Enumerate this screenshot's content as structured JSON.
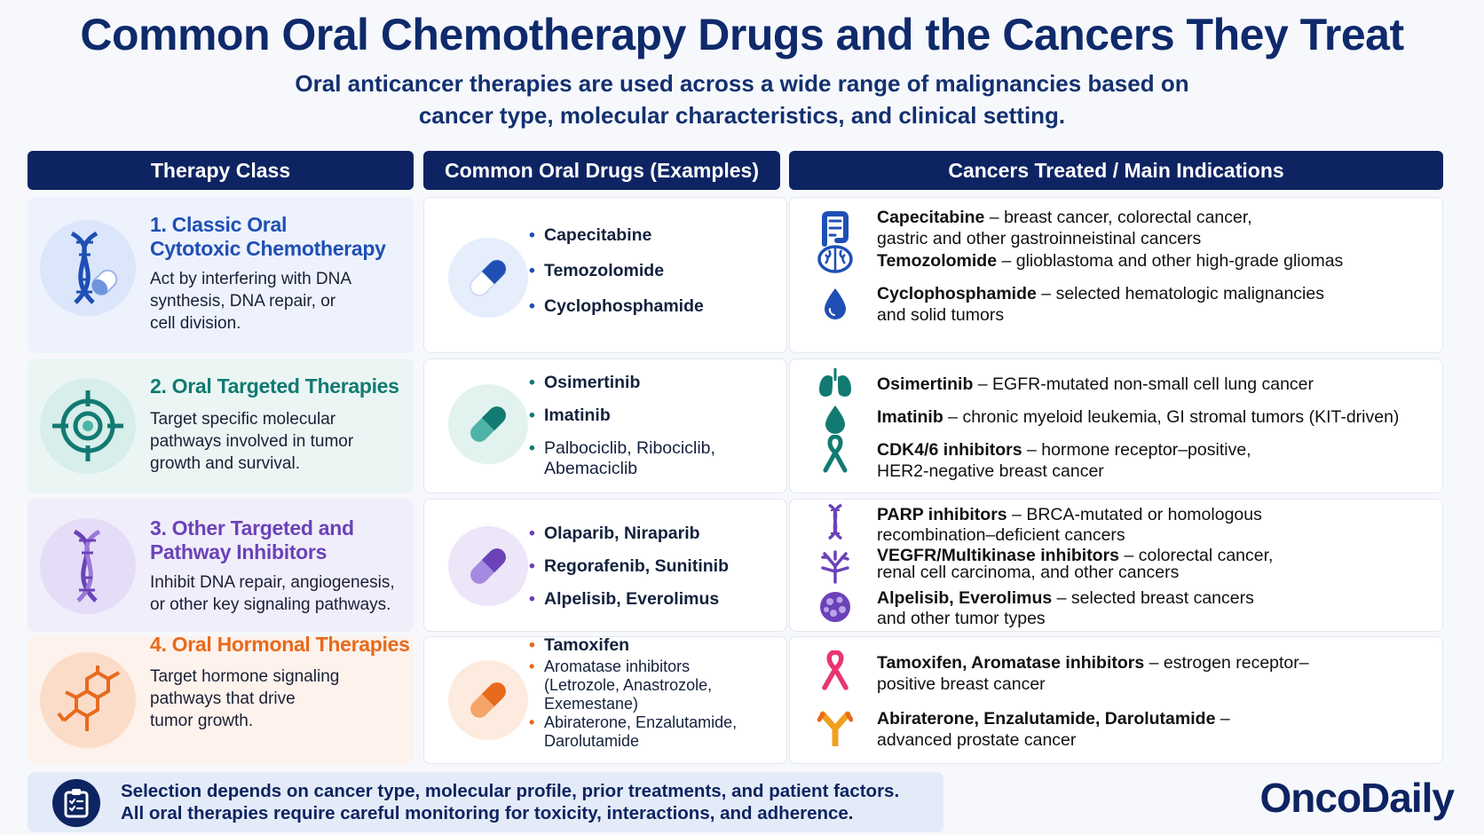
{
  "title": "Common Oral Chemotherapy Drugs and the Cancers They Treat",
  "subtitle_line1": "Oral anticancer therapies are used across a wide range of malignancies based on",
  "subtitle_line2": "cancer type, molecular characteristics, and clinical setting.",
  "headers": {
    "therapy_class": "Therapy Class",
    "drugs": "Common Oral Drugs (Examples)",
    "indications": "Cancers Treated / Main Indications"
  },
  "colors": {
    "navy": "#0e2462",
    "blue": "#1f4fb5",
    "teal": "#127a72",
    "purple": "#6b42b8",
    "orange": "#e86a1c"
  },
  "rows": [
    {
      "class_title_1": "1. Classic Oral",
      "class_title_2": "Cytotoxic Chemotherapy",
      "class_desc_1": "Act by interfering with DNA",
      "class_desc_2": "synthesis, DNA repair, or",
      "class_desc_3": "cell division.",
      "class_icon": "dna-capsule-icon",
      "drug_icon": "blue-capsule-icon",
      "drugs": [
        "Capecitabine",
        "Temozolomide",
        "Cyclophosphamide"
      ],
      "indications": [
        {
          "icon": "intestine-icon",
          "drug": "Capecitabine",
          "sep": " – ",
          "text1": "breast cancer, colorectal cancer,",
          "text2": "gastric and other gastroinneistinal cancers"
        },
        {
          "icon": "brain-icon",
          "drug": "Temozolomide",
          "sep": " – ",
          "text1": "glioblastoma and other high-grade gliomas",
          "text2": ""
        },
        {
          "icon": "blood-drop-icon",
          "drug": "Cyclophosphamide",
          "sep": " – ",
          "text1": "selected hematologic malignancies",
          "text2": "and solid tumors"
        }
      ]
    },
    {
      "class_title_1": "2. Oral Targeted Therapies",
      "class_title_2": "",
      "class_desc_1": "Target specific molecular",
      "class_desc_2": "pathways involved in tumor",
      "class_desc_3": "growth and survival.",
      "class_icon": "target-icon",
      "drug_icon": "teal-capsule-icon",
      "drugs": [
        "Osimertinib",
        "Imatinib",
        "Palbociclib, Ribociclib,",
        "Abemaciclib"
      ],
      "indications": [
        {
          "icon": "lungs-icon",
          "drug": "Osimertinib",
          "sep": " – ",
          "text1": "EGFR-mutated non-small cell lung cancer",
          "text2": ""
        },
        {
          "icon": "drop-icon",
          "drug": "Imatinib",
          "sep": " – ",
          "text1": "chronic myeloid leukemia, GI stromal tumors (KIT-driven)",
          "text2": ""
        },
        {
          "icon": "ribbon-icon",
          "drug": "CDK4/6 inhibitors",
          "sep": " – ",
          "text1": "hormone receptor–positive,",
          "text2": "HER2-negative breast cancer"
        }
      ]
    },
    {
      "class_title_1": "3. Other Targeted and",
      "class_title_2": "Pathway Inhibitors",
      "class_desc_1": "Inhibit DNA repair, angiogenesis,",
      "class_desc_2": "or other key signaling pathways.",
      "class_desc_3": "",
      "class_icon": "dna-icon",
      "drug_icon": "purple-capsule-icon",
      "drugs": [
        "Olaparib, Niraparib",
        "Regorafenib, Sunitinib",
        "Alpelisib, Everolimus"
      ],
      "indications": [
        {
          "icon": "dna-small-icon",
          "drug": "PARP inhibitors",
          "sep": " – ",
          "text1": "BRCA-mutated or homologous",
          "text2": "recombination–deficient cancers"
        },
        {
          "icon": "vessel-icon",
          "drug": "VEGFR/Multikinase inhibitors",
          "sep": " – ",
          "text1": "colorectal cancer,",
          "text2": "renal cell carcinoma, and other cancers"
        },
        {
          "icon": "tumor-cell-icon",
          "drug": "Alpelisib, Everolimus",
          "sep": " – ",
          "text1": "selected breast cancers",
          "text2": "and other tumor types"
        }
      ]
    },
    {
      "class_title_1": "4. Oral Hormonal Therapies",
      "class_title_2": "",
      "class_desc_1": "Target hormone signaling",
      "class_desc_2": "pathways that drive",
      "class_desc_3": "tumor growth.",
      "class_icon": "molecule-icon",
      "drug_icon": "orange-capsule-icon",
      "drugs": [
        "Tamoxifen",
        "Aromatase inhibitors",
        "(Letrozole, Anastrozole,",
        "Exemestane)",
        "Abiraterone, Enzalutamide,",
        "Darolutamide"
      ],
      "indications": [
        {
          "icon": "pink-ribbon-icon",
          "drug": "Tamoxifen, Aromatase inhibitors",
          "sep": " – ",
          "text1": "estrogen receptor–",
          "text2": "positive breast cancer"
        },
        {
          "icon": "receptor-icon",
          "drug": "Abiraterone, Enzalutamide, Darolutamide",
          "sep": " –",
          "text1": "",
          "text2": "advanced prostate cancer"
        }
      ]
    }
  ],
  "footer": {
    "icon": "clipboard-icon",
    "line1": "Selection depends on cancer type, molecular profile, prior treatments, and patient factors.",
    "line2": "All oral therapies require careful monitoring for toxicity, interactions, and adherence."
  },
  "brand": "OncoDaily"
}
